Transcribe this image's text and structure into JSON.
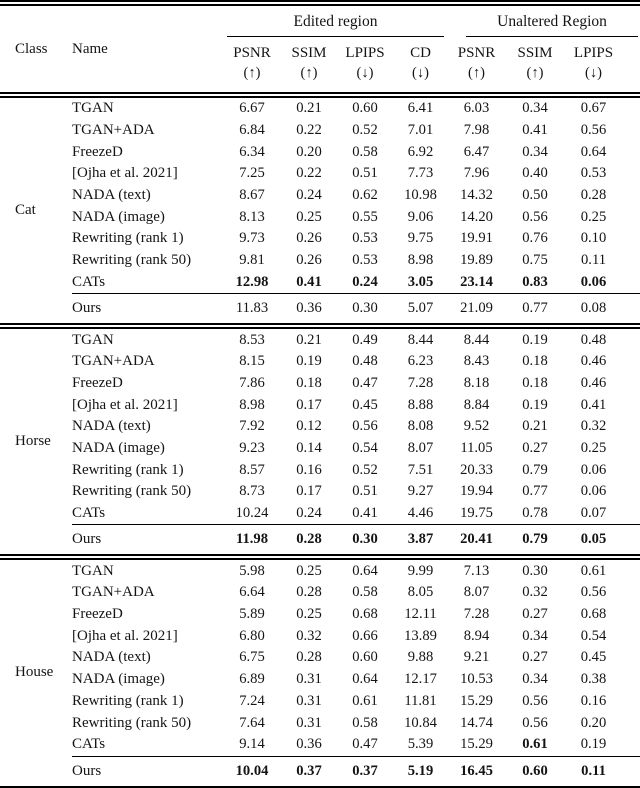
{
  "header": {
    "class_label": "Class",
    "name_label": "Name",
    "groups": [
      {
        "title": "Edited region",
        "columns": [
          {
            "name": "PSNR",
            "dir": "(↑)"
          },
          {
            "name": "SSIM",
            "dir": "(↑)"
          },
          {
            "name": "LPIPS",
            "dir": "(↓)"
          },
          {
            "name": "CD",
            "dir": "(↓)"
          }
        ]
      },
      {
        "title": "Unaltered Region",
        "columns": [
          {
            "name": "PSNR",
            "dir": "(↑)"
          },
          {
            "name": "SSIM",
            "dir": "(↑)"
          },
          {
            "name": "LPIPS",
            "dir": "(↓)"
          }
        ]
      }
    ]
  },
  "sections": [
    {
      "class_name": "Cat",
      "rows": [
        {
          "name": "TGAN",
          "values": [
            "6.67",
            "0.21",
            "0.60",
            "6.41",
            "6.03",
            "0.34",
            "0.67"
          ]
        },
        {
          "name": "TGAN+ADA",
          "values": [
            "6.84",
            "0.22",
            "0.52",
            "7.01",
            "7.98",
            "0.41",
            "0.56"
          ]
        },
        {
          "name": "FreezeD",
          "values": [
            "6.34",
            "0.20",
            "0.58",
            "6.92",
            "6.47",
            "0.34",
            "0.64"
          ]
        },
        {
          "name": "[Ojha et al. 2021]",
          "values": [
            "7.25",
            "0.22",
            "0.51",
            "7.73",
            "7.96",
            "0.40",
            "0.53"
          ]
        },
        {
          "name": "NADA (text)",
          "values": [
            "8.67",
            "0.24",
            "0.62",
            "10.98",
            "14.32",
            "0.50",
            "0.28"
          ]
        },
        {
          "name": "NADA (image)",
          "values": [
            "8.13",
            "0.25",
            "0.55",
            "9.06",
            "14.20",
            "0.56",
            "0.25"
          ]
        },
        {
          "name": "Rewriting (rank 1)",
          "values": [
            "9.73",
            "0.26",
            "0.53",
            "9.75",
            "19.91",
            "0.76",
            "0.10"
          ]
        },
        {
          "name": "Rewriting (rank 50)",
          "values": [
            "9.81",
            "0.26",
            "0.53",
            "8.98",
            "19.89",
            "0.75",
            "0.11"
          ]
        },
        {
          "name": "CATs",
          "values": [
            "12.98",
            "0.41",
            "0.24",
            "3.05",
            "23.14",
            "0.83",
            "0.06"
          ],
          "bold": true
        }
      ],
      "ours": {
        "name": "Ours",
        "values": [
          "11.83",
          "0.36",
          "0.30",
          "5.07",
          "21.09",
          "0.77",
          "0.08"
        ]
      }
    },
    {
      "class_name": "Horse",
      "rows": [
        {
          "name": "TGAN",
          "values": [
            "8.53",
            "0.21",
            "0.49",
            "8.44",
            "8.44",
            "0.19",
            "0.48"
          ]
        },
        {
          "name": "TGAN+ADA",
          "values": [
            "8.15",
            "0.19",
            "0.48",
            "6.23",
            "8.43",
            "0.18",
            "0.46"
          ]
        },
        {
          "name": "FreezeD",
          "values": [
            "7.86",
            "0.18",
            "0.47",
            "7.28",
            "8.18",
            "0.18",
            "0.46"
          ]
        },
        {
          "name": "[Ojha et al. 2021]",
          "values": [
            "8.98",
            "0.17",
            "0.45",
            "8.88",
            "8.84",
            "0.19",
            "0.41"
          ]
        },
        {
          "name": "NADA (text)",
          "values": [
            "7.92",
            "0.12",
            "0.56",
            "8.08",
            "9.52",
            "0.21",
            "0.32"
          ]
        },
        {
          "name": "NADA (image)",
          "values": [
            "9.23",
            "0.14",
            "0.54",
            "8.07",
            "11.05",
            "0.27",
            "0.25"
          ]
        },
        {
          "name": "Rewriting (rank 1)",
          "values": [
            "8.57",
            "0.16",
            "0.52",
            "7.51",
            "20.33",
            "0.79",
            "0.06"
          ]
        },
        {
          "name": "Rewriting (rank 50)",
          "values": [
            "8.73",
            "0.17",
            "0.51",
            "9.27",
            "19.94",
            "0.77",
            "0.06"
          ]
        },
        {
          "name": "CATs",
          "values": [
            "10.24",
            "0.24",
            "0.41",
            "4.46",
            "19.75",
            "0.78",
            "0.07"
          ]
        }
      ],
      "ours": {
        "name": "Ours",
        "values": [
          "11.98",
          "0.28",
          "0.30",
          "3.87",
          "20.41",
          "0.79",
          "0.05"
        ],
        "bold": true
      }
    },
    {
      "class_name": "House",
      "rows": [
        {
          "name": "TGAN",
          "values": [
            "5.98",
            "0.25",
            "0.64",
            "9.99",
            "7.13",
            "0.30",
            "0.61"
          ]
        },
        {
          "name": "TGAN+ADA",
          "values": [
            "6.64",
            "0.28",
            "0.58",
            "8.05",
            "8.07",
            "0.32",
            "0.56"
          ]
        },
        {
          "name": "FreezeD",
          "values": [
            "5.89",
            "0.25",
            "0.68",
            "12.11",
            "7.28",
            "0.27",
            "0.68"
          ]
        },
        {
          "name": "[Ojha et al. 2021]",
          "values": [
            "6.80",
            "0.32",
            "0.66",
            "13.89",
            "8.94",
            "0.34",
            "0.54"
          ]
        },
        {
          "name": "NADA (text)",
          "values": [
            "6.75",
            "0.28",
            "0.60",
            "9.88",
            "9.21",
            "0.27",
            "0.45"
          ]
        },
        {
          "name": "NADA (image)",
          "values": [
            "6.89",
            "0.31",
            "0.64",
            "12.17",
            "10.53",
            "0.34",
            "0.38"
          ]
        },
        {
          "name": "Rewriting (rank 1)",
          "values": [
            "7.24",
            "0.31",
            "0.61",
            "11.81",
            "15.29",
            "0.56",
            "0.16"
          ]
        },
        {
          "name": "Rewriting (rank 50)",
          "values": [
            "7.64",
            "0.31",
            "0.58",
            "10.84",
            "14.74",
            "0.56",
            "0.20"
          ]
        },
        {
          "name": "CATs",
          "values": [
            "9.14",
            "0.36",
            "0.47",
            "5.39",
            "15.29",
            "0.61",
            "0.19"
          ],
          "bold_indices": [
            5
          ]
        }
      ],
      "ours": {
        "name": "Ours",
        "values": [
          "10.04",
          "0.37",
          "0.37",
          "5.19",
          "16.45",
          "0.60",
          "0.11"
        ],
        "bold": true
      }
    }
  ]
}
